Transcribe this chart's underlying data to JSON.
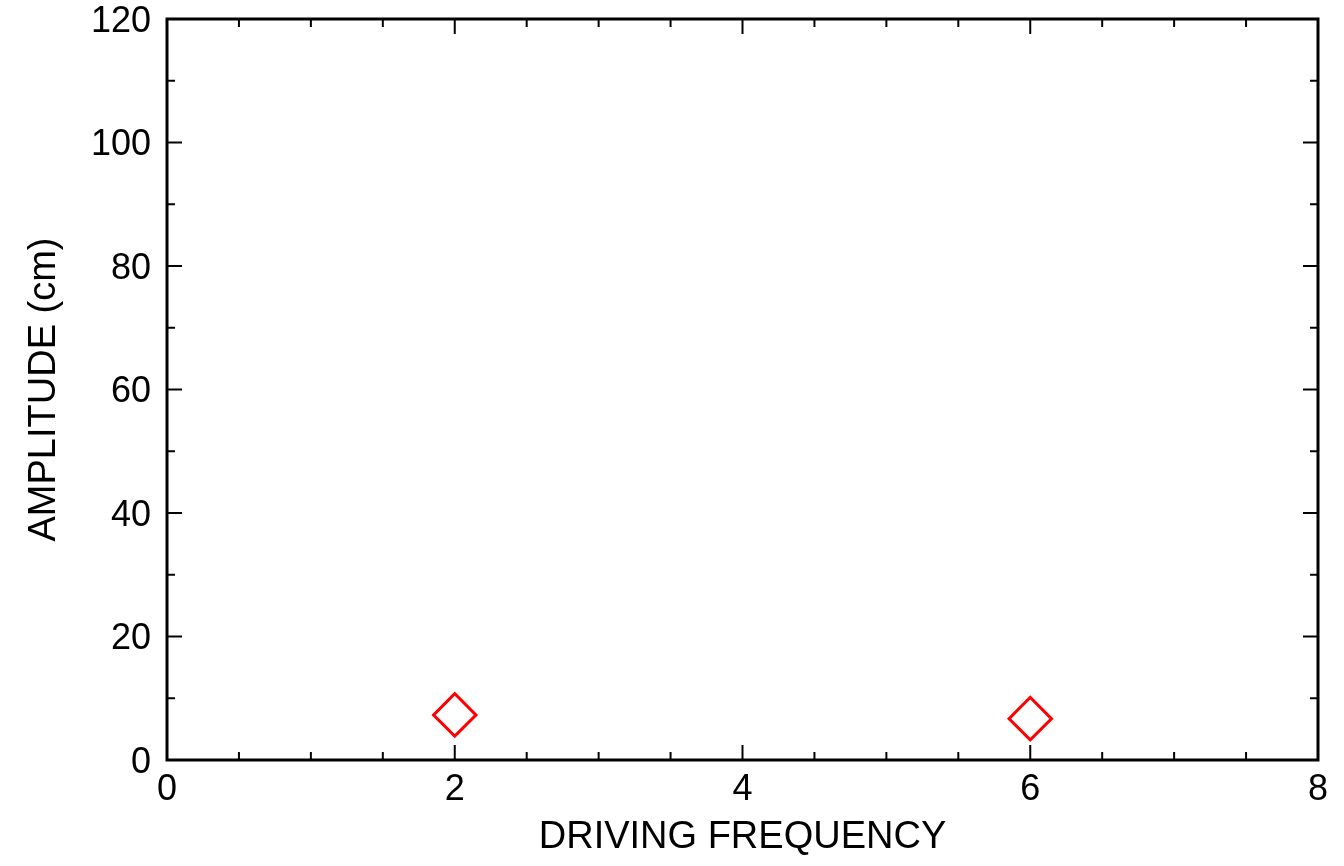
{
  "chart_data": {
    "type": "scatter",
    "xlabel": "DRIVING FREQUENCY",
    "ylabel": "AMPLITUDE (cm)",
    "x": [
      2,
      6
    ],
    "series": [
      {
        "color": "#ff0000",
        "values": [
          7.3,
          6.7
        ]
      }
    ],
    "marker": "diamond",
    "grid": false,
    "xlim": [
      0,
      8
    ],
    "xticks": [
      0,
      {
        "value": 0.5,
        "label": null
      },
      {
        "value": 1,
        "label": null
      },
      {
        "value": 1.5,
        "label": null
      },
      2,
      {
        "value": 2.5,
        "label": null
      },
      {
        "value": 3,
        "label": null
      },
      {
        "value": 3.5,
        "label": null
      },
      4,
      {
        "value": 4.5,
        "label": null
      },
      {
        "value": 5,
        "label": null
      },
      {
        "value": 5.5,
        "label": null
      },
      6,
      {
        "value": 6.5,
        "label": null
      },
      {
        "value": 7,
        "label": null
      },
      {
        "value": 7.5,
        "label": null
      },
      8
    ],
    "ylim": [
      0,
      120
    ],
    "yticks": [
      0,
      {
        "value": 10,
        "label": null
      },
      20,
      {
        "value": 30,
        "label": null
      },
      40,
      {
        "value": 50,
        "label": null
      },
      60,
      {
        "value": 70,
        "label": null
      },
      80,
      {
        "value": 90,
        "label": null
      },
      100,
      {
        "value": 110,
        "label": null
      },
      120
    ]
  }
}
